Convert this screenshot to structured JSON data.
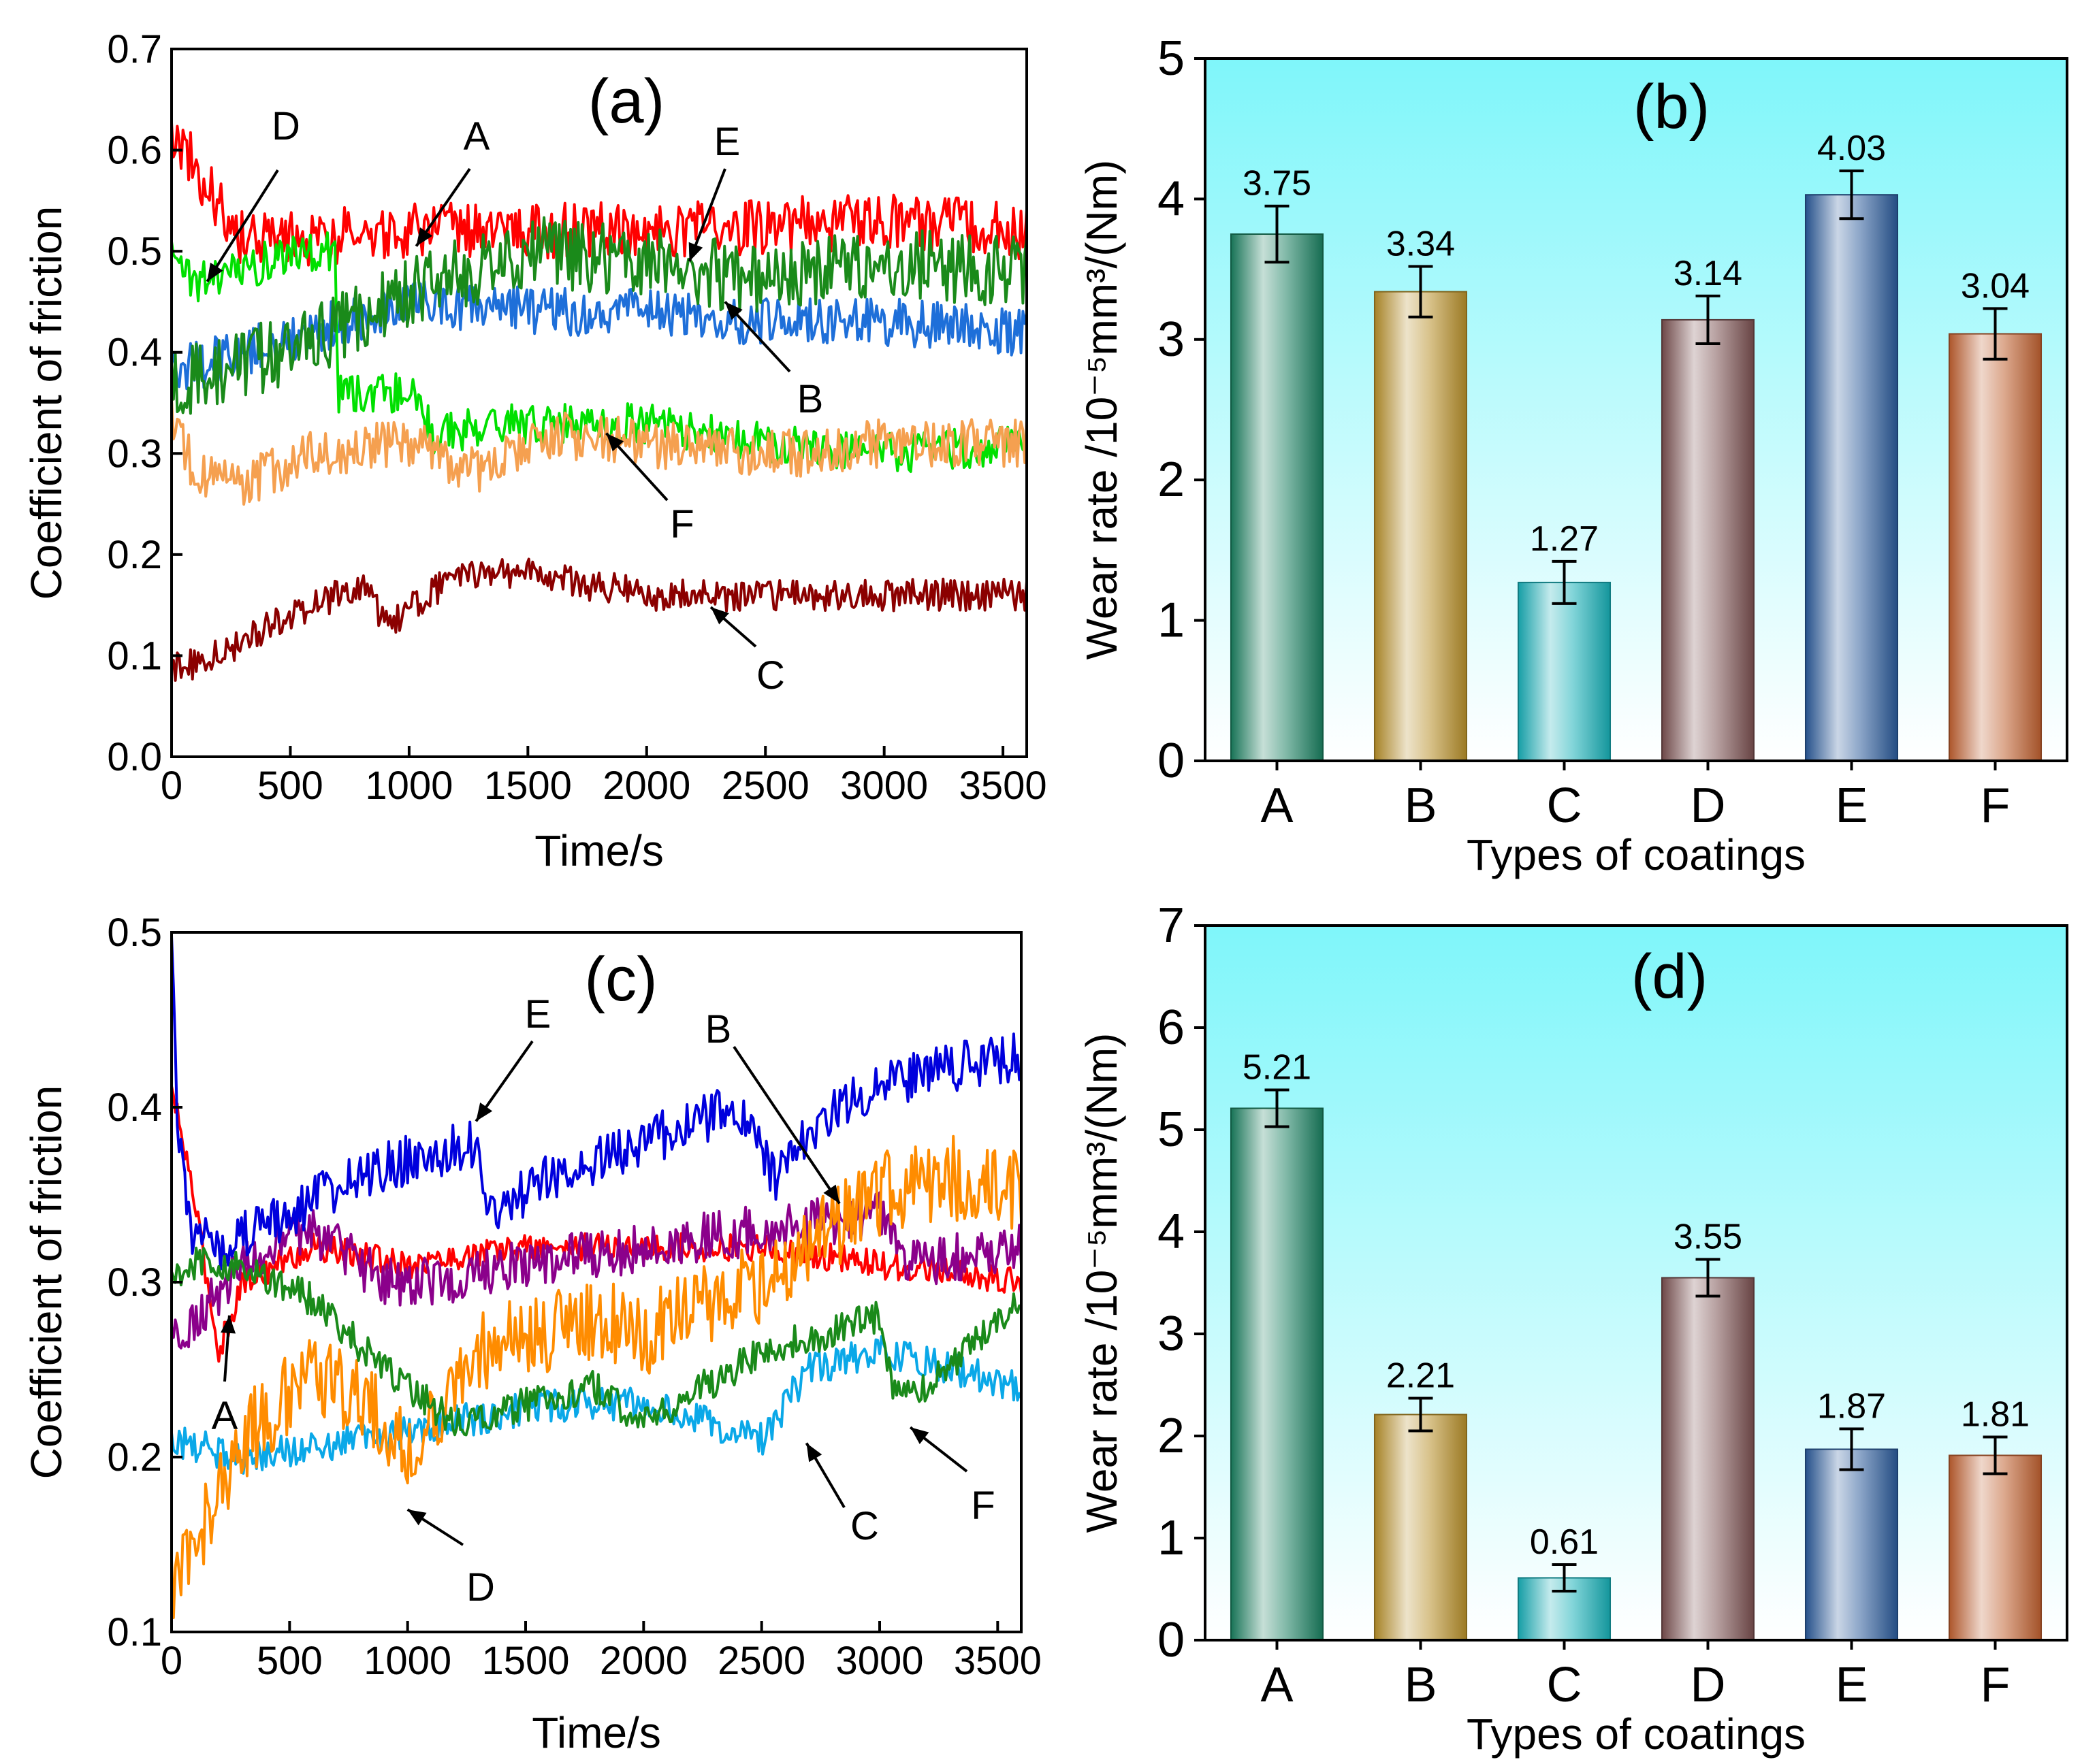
{
  "chart_data": [
    {
      "panel": "(a)",
      "type": "line",
      "xlabel": "Time/s",
      "ylabel": "Coefficient of friction",
      "xlim": [
        0,
        3600
      ],
      "ylim": [
        0.0,
        0.7
      ],
      "xticks": [
        "0",
        "500",
        "1000",
        "1500",
        "2000",
        "2500",
        "3000",
        "3500"
      ],
      "yticks": [
        "0.0",
        "0.1",
        "0.2",
        "0.3",
        "0.4",
        "0.5",
        "0.6",
        "0.7"
      ],
      "series": [
        {
          "name": "A",
          "color": "#ff0000",
          "start": 0.62,
          "dip": 0.49,
          "level": 0.52,
          "end": 0.52,
          "noise": 0.035,
          "spikes": [
            [
              40,
              0.62
            ],
            [
              130,
              0.62
            ]
          ],
          "x": [
            0,
            300,
            1000,
            2000,
            3000,
            3600
          ],
          "y": [
            0.62,
            0.51,
            0.52,
            0.52,
            0.53,
            0.52
          ]
        },
        {
          "name": "B",
          "color": "#1e6fd9",
          "x": [
            0,
            300,
            1000,
            1500,
            2000,
            2500,
            3000,
            3600
          ],
          "y": [
            0.38,
            0.4,
            0.45,
            0.44,
            0.44,
            0.43,
            0.43,
            0.42
          ],
          "noise": 0.03
        },
        {
          "name": "C",
          "color": "#8b0000",
          "x": [
            0,
            100,
            500,
            800,
            900,
            1200,
            1500,
            2000,
            2500,
            3000,
            3600
          ],
          "y": [
            0.09,
            0.09,
            0.14,
            0.17,
            0.13,
            0.18,
            0.18,
            0.16,
            0.16,
            0.16,
            0.16
          ],
          "noise": 0.02
        },
        {
          "name": "D",
          "color": "#00e000",
          "x": [
            0,
            100,
            300,
            500,
            690,
            700,
            1000,
            1100,
            1500,
            2000,
            2500,
            3000,
            3600
          ],
          "y": [
            0.5,
            0.47,
            0.48,
            0.5,
            0.5,
            0.36,
            0.36,
            0.32,
            0.33,
            0.33,
            0.31,
            0.3,
            0.31
          ],
          "noise": 0.025
        },
        {
          "name": "E",
          "color": "#1a8a1a",
          "x": [
            0,
            200,
            600,
            1000,
            1500,
            2000,
            2500,
            3000,
            3600
          ],
          "y": [
            0.37,
            0.38,
            0.41,
            0.46,
            0.5,
            0.49,
            0.47,
            0.49,
            0.48
          ],
          "noise": 0.045
        },
        {
          "name": "F",
          "color": "#f5a050",
          "x": [
            0,
            100,
            300,
            600,
            1000,
            1300,
            1600,
            2000,
            2600,
            3000,
            3600
          ],
          "y": [
            0.34,
            0.28,
            0.27,
            0.3,
            0.31,
            0.28,
            0.32,
            0.31,
            0.3,
            0.31,
            0.31
          ],
          "noise": 0.03
        }
      ],
      "annotations": [
        "A",
        "B",
        "C",
        "D",
        "E",
        "F"
      ]
    },
    {
      "panel": "(b)",
      "type": "bar",
      "xlabel": "Types of coatings",
      "ylabel": "Wear rate /10⁻⁵mm³/(Nm)",
      "ylim": [
        0,
        5
      ],
      "yticks": [
        "0",
        "1",
        "2",
        "3",
        "4",
        "5"
      ],
      "categories": [
        "A",
        "B",
        "C",
        "D",
        "E",
        "F"
      ],
      "values": [
        3.75,
        3.34,
        1.27,
        3.14,
        4.03,
        3.04
      ],
      "value_labels": [
        "3.75",
        "3.34",
        "1.27",
        "3.14",
        "4.03",
        "3.04"
      ],
      "errors": [
        0.2,
        0.18,
        0.15,
        0.17,
        0.17,
        0.18
      ],
      "bar_colors": [
        "#1a8060",
        "#b8902a",
        "#18b0b8",
        "#7a5050",
        "#2a5a9a",
        "#c06030"
      ]
    },
    {
      "panel": "(c)",
      "type": "line",
      "xlabel": "Time/s",
      "ylabel": "Coefficient of friction",
      "xlim": [
        0,
        3600
      ],
      "ylim": [
        0.1,
        0.5
      ],
      "xticks": [
        "0",
        "500",
        "1000",
        "1500",
        "2000",
        "2500",
        "3000",
        "3500"
      ],
      "yticks": [
        "0.1",
        "0.2",
        "0.3",
        "0.4",
        "0.5"
      ],
      "series": [
        {
          "name": "A",
          "color": "#ff0000",
          "x": [
            0,
            80,
            200,
            300,
            600,
            1000,
            1500,
            2000,
            2500,
            3000,
            3600
          ],
          "y": [
            0.41,
            0.36,
            0.26,
            0.3,
            0.32,
            0.31,
            0.32,
            0.32,
            0.32,
            0.31,
            0.3
          ],
          "noise": 0.01
        },
        {
          "name": "B",
          "color": "#8b008b",
          "x": [
            0,
            100,
            300,
            600,
            900,
            1200,
            1500,
            2000,
            2500,
            3000,
            3100,
            3600
          ],
          "y": [
            0.27,
            0.28,
            0.31,
            0.33,
            0.3,
            0.3,
            0.31,
            0.32,
            0.33,
            0.34,
            0.31,
            0.32
          ],
          "noise": 0.018
        },
        {
          "name": "C",
          "color": "#0aa8e8",
          "x": [
            0,
            300,
            800,
            1200,
            1600,
            2000,
            2500,
            2700,
            3000,
            3600
          ],
          "y": [
            0.21,
            0.2,
            0.21,
            0.22,
            0.23,
            0.23,
            0.21,
            0.25,
            0.26,
            0.24
          ],
          "noise": 0.012
        },
        {
          "name": "D",
          "color": "#ff8c00",
          "x": [
            0,
            100,
            300,
            600,
            900,
            1000,
            1300,
            1800,
            2000,
            2500,
            3000,
            3300,
            3600
          ],
          "y": [
            0.13,
            0.15,
            0.21,
            0.25,
            0.22,
            0.2,
            0.26,
            0.28,
            0.27,
            0.3,
            0.35,
            0.36,
            0.35
          ],
          "noise": 0.03
        },
        {
          "name": "E",
          "color": "#0000dd",
          "x": [
            0,
            20,
            80,
            200,
            500,
            800,
            1000,
            1300,
            1350,
            1600,
            2000,
            2400,
            2550,
            2800,
            3200,
            3600
          ],
          "y": [
            0.5,
            0.4,
            0.33,
            0.32,
            0.34,
            0.36,
            0.37,
            0.38,
            0.34,
            0.36,
            0.38,
            0.4,
            0.36,
            0.4,
            0.42,
            0.43
          ],
          "noise": 0.018
        },
        {
          "name": "F",
          "color": "#1a8a1a",
          "x": [
            0,
            100,
            300,
            600,
            900,
            1200,
            1500,
            1800,
            2000,
            2500,
            3000,
            3050,
            3200,
            3600
          ],
          "y": [
            0.3,
            0.31,
            0.31,
            0.29,
            0.25,
            0.22,
            0.23,
            0.24,
            0.22,
            0.26,
            0.28,
            0.24,
            0.24,
            0.29
          ],
          "noise": 0.012
        }
      ],
      "annotations": [
        "A",
        "B",
        "C",
        "D",
        "E",
        "F"
      ]
    },
    {
      "panel": "(d)",
      "type": "bar",
      "xlabel": "Types of coatings",
      "ylabel": "Wear rate /10⁻⁵mm³/(Nm)",
      "ylim": [
        0,
        7
      ],
      "yticks": [
        "0",
        "1",
        "2",
        "3",
        "4",
        "5",
        "6",
        "7"
      ],
      "categories": [
        "A",
        "B",
        "C",
        "D",
        "E",
        "F"
      ],
      "values": [
        5.21,
        2.21,
        0.61,
        3.55,
        1.87,
        1.81
      ],
      "value_labels": [
        "5.21",
        "2.21",
        "0.61",
        "3.55",
        "1.87",
        "1.81"
      ],
      "errors": [
        0.18,
        0.16,
        0.13,
        0.18,
        0.2,
        0.18
      ],
      "bar_colors": [
        "#1a8060",
        "#b8902a",
        "#18b0b8",
        "#7a5050",
        "#2a5a9a",
        "#c06030"
      ]
    }
  ]
}
